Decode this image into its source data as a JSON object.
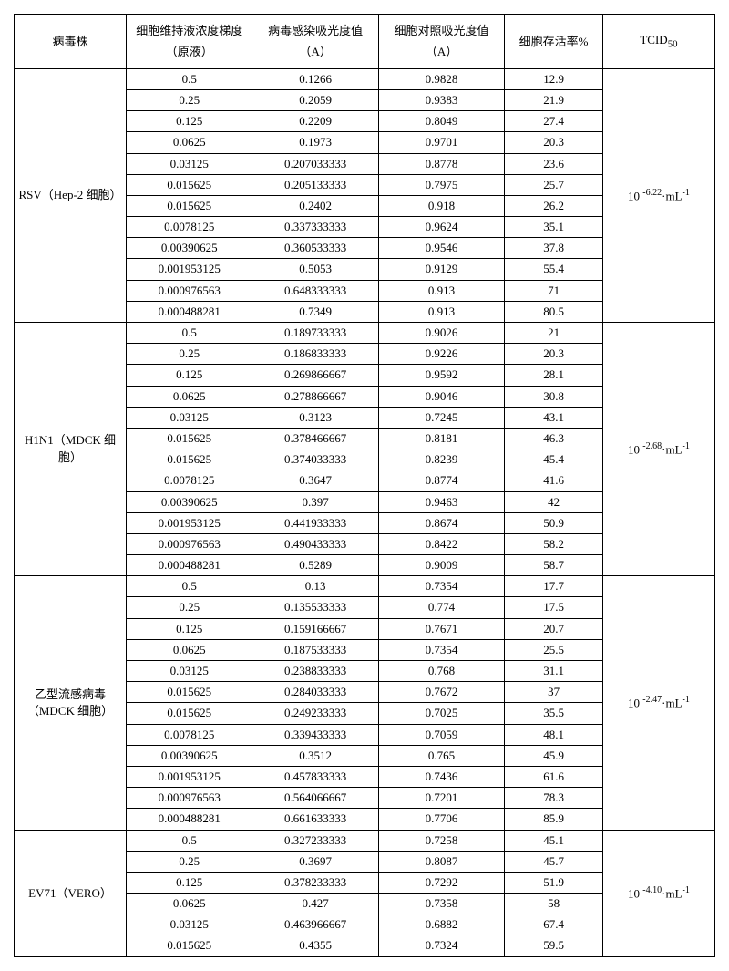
{
  "headers": {
    "strain": "病毒株",
    "conc": "细胞维持液浓度梯度（原液）",
    "abs_infect": "病毒感染吸光度值（A）",
    "abs_control": "细胞对照吸光度值（A）",
    "survival": "细胞存活率%",
    "tcid": "TCID"
  },
  "groups": [
    {
      "strain": "RSV（Hep-2 细胞）",
      "tcid_exp": "-6.22",
      "rows": [
        {
          "c": "0.5",
          "a": "0.1266",
          "b": "0.9828",
          "s": "12.9"
        },
        {
          "c": "0.25",
          "a": "0.2059",
          "b": "0.9383",
          "s": "21.9"
        },
        {
          "c": "0.125",
          "a": "0.2209",
          "b": "0.8049",
          "s": "27.4"
        },
        {
          "c": "0.0625",
          "a": "0.1973",
          "b": "0.9701",
          "s": "20.3"
        },
        {
          "c": "0.03125",
          "a": "0.207033333",
          "b": "0.8778",
          "s": "23.6"
        },
        {
          "c": "0.015625",
          "a": "0.205133333",
          "b": "0.7975",
          "s": "25.7"
        },
        {
          "c": "0.015625",
          "a": "0.2402",
          "b": "0.918",
          "s": "26.2"
        },
        {
          "c": "0.0078125",
          "a": "0.337333333",
          "b": "0.9624",
          "s": "35.1"
        },
        {
          "c": "0.00390625",
          "a": "0.360533333",
          "b": "0.9546",
          "s": "37.8"
        },
        {
          "c": "0.001953125",
          "a": "0.5053",
          "b": "0.9129",
          "s": "55.4"
        },
        {
          "c": "0.000976563",
          "a": "0.648333333",
          "b": "0.913",
          "s": "71"
        },
        {
          "c": "0.000488281",
          "a": "0.7349",
          "b": "0.913",
          "s": "80.5"
        }
      ]
    },
    {
      "strain": "H1N1（MDCK 细胞）",
      "tcid_exp": "-2.68",
      "rows": [
        {
          "c": "0.5",
          "a": "0.189733333",
          "b": "0.9026",
          "s": "21"
        },
        {
          "c": "0.25",
          "a": "0.186833333",
          "b": "0.9226",
          "s": "20.3"
        },
        {
          "c": "0.125",
          "a": "0.269866667",
          "b": "0.9592",
          "s": "28.1"
        },
        {
          "c": "0.0625",
          "a": "0.278866667",
          "b": "0.9046",
          "s": "30.8"
        },
        {
          "c": "0.03125",
          "a": "0.3123",
          "b": "0.7245",
          "s": "43.1"
        },
        {
          "c": "0.015625",
          "a": "0.378466667",
          "b": "0.8181",
          "s": "46.3"
        },
        {
          "c": "0.015625",
          "a": "0.374033333",
          "b": "0.8239",
          "s": "45.4"
        },
        {
          "c": "0.0078125",
          "a": "0.3647",
          "b": "0.8774",
          "s": "41.6"
        },
        {
          "c": "0.00390625",
          "a": "0.397",
          "b": "0.9463",
          "s": "42"
        },
        {
          "c": "0.001953125",
          "a": "0.441933333",
          "b": "0.8674",
          "s": "50.9"
        },
        {
          "c": "0.000976563",
          "a": "0.490433333",
          "b": "0.8422",
          "s": "58.2"
        },
        {
          "c": "0.000488281",
          "a": "0.5289",
          "b": "0.9009",
          "s": "58.7"
        }
      ]
    },
    {
      "strain": "乙型流感病毒（MDCK 细胞）",
      "tcid_exp": "-2.47",
      "rows": [
        {
          "c": "0.5",
          "a": "0.13",
          "b": "0.7354",
          "s": "17.7"
        },
        {
          "c": "0.25",
          "a": "0.135533333",
          "b": "0.774",
          "s": "17.5"
        },
        {
          "c": "0.125",
          "a": "0.159166667",
          "b": "0.7671",
          "s": "20.7"
        },
        {
          "c": "0.0625",
          "a": "0.187533333",
          "b": "0.7354",
          "s": "25.5"
        },
        {
          "c": "0.03125",
          "a": "0.238833333",
          "b": "0.768",
          "s": "31.1"
        },
        {
          "c": "0.015625",
          "a": "0.284033333",
          "b": "0.7672",
          "s": "37"
        },
        {
          "c": "0.015625",
          "a": "0.249233333",
          "b": "0.7025",
          "s": "35.5"
        },
        {
          "c": "0.0078125",
          "a": "0.339433333",
          "b": "0.7059",
          "s": "48.1"
        },
        {
          "c": "0.00390625",
          "a": "0.3512",
          "b": "0.765",
          "s": "45.9"
        },
        {
          "c": "0.001953125",
          "a": "0.457833333",
          "b": "0.7436",
          "s": "61.6"
        },
        {
          "c": "0.000976563",
          "a": "0.564066667",
          "b": "0.7201",
          "s": "78.3"
        },
        {
          "c": "0.000488281",
          "a": "0.661633333",
          "b": "0.7706",
          "s": "85.9"
        }
      ]
    },
    {
      "strain": "EV71（VERO）",
      "tcid_exp": "-4.10",
      "rows": [
        {
          "c": "0.5",
          "a": "0.327233333",
          "b": "0.7258",
          "s": "45.1"
        },
        {
          "c": "0.25",
          "a": "0.3697",
          "b": "0.8087",
          "s": "45.7"
        },
        {
          "c": "0.125",
          "a": "0.378233333",
          "b": "0.7292",
          "s": "51.9"
        },
        {
          "c": "0.0625",
          "a": "0.427",
          "b": "0.7358",
          "s": "58"
        },
        {
          "c": "0.03125",
          "a": "0.463966667",
          "b": "0.6882",
          "s": "67.4"
        },
        {
          "c": "0.015625",
          "a": "0.4355",
          "b": "0.7324",
          "s": "59.5"
        }
      ]
    }
  ]
}
